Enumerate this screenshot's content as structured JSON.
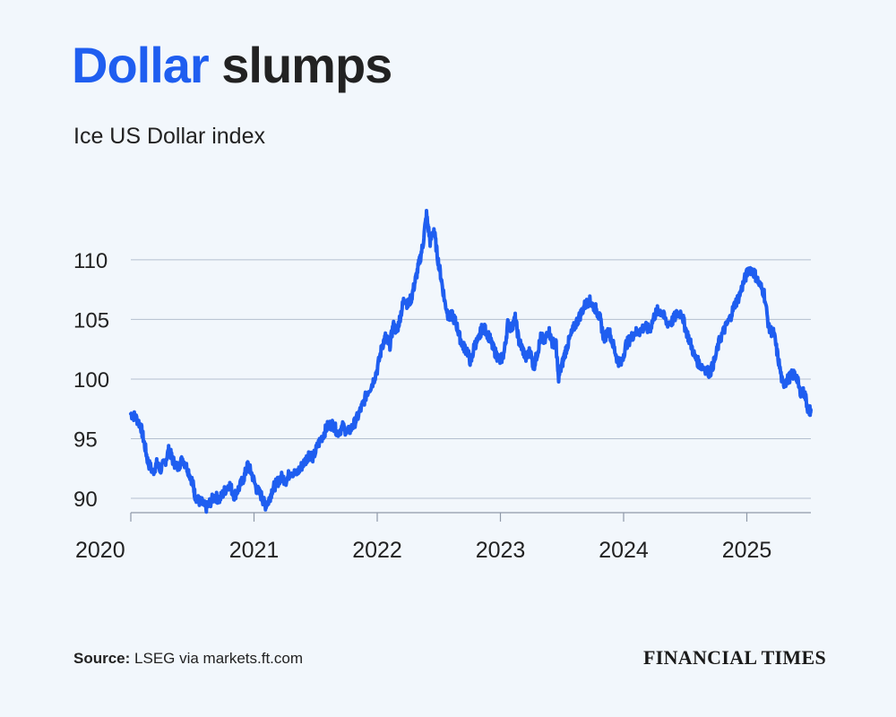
{
  "header": {
    "title_accent": "Dollar",
    "title_rest": " slumps",
    "subtitle": "Ice US Dollar index"
  },
  "footer": {
    "source_label": "Source:",
    "source_text": " LSEG via markets.ft.com",
    "logo": "FINANCIAL TIMES"
  },
  "colors": {
    "line": "#1f5ef0",
    "accent": "#1f5ef0",
    "grid": "#b4bfcf",
    "background": "#f2f7fc"
  },
  "chart_data": {
    "type": "line",
    "title": "Dollar slumps",
    "subtitle": "Ice US Dollar index",
    "xlabel": "",
    "ylabel": "",
    "xlim": [
      2020.0,
      2025.52
    ],
    "ylim": [
      88.8,
      114.5
    ],
    "grid": true,
    "y_ticks": [
      90,
      95,
      100,
      105,
      110
    ],
    "x_ticks": [
      2020,
      2021,
      2022,
      2023,
      2024,
      2025
    ],
    "x_tick_labels": [
      "2020",
      "2021",
      "2022",
      "2023",
      "2024",
      "2025"
    ],
    "series": [
      {
        "name": "",
        "points": [
          [
            2020.0,
            97.1
          ],
          [
            2020.04,
            96.8
          ],
          [
            2020.08,
            96.1
          ],
          [
            2020.11,
            94.6
          ],
          [
            2020.14,
            93.0
          ],
          [
            2020.18,
            92.2
          ],
          [
            2020.21,
            92.9
          ],
          [
            2020.24,
            92.4
          ],
          [
            2020.28,
            93.1
          ],
          [
            2020.31,
            94.1
          ],
          [
            2020.34,
            93.2
          ],
          [
            2020.38,
            92.6
          ],
          [
            2020.42,
            93.3
          ],
          [
            2020.46,
            92.5
          ],
          [
            2020.5,
            91.4
          ],
          [
            2020.52,
            90.3
          ],
          [
            2020.55,
            89.8
          ],
          [
            2020.58,
            89.6
          ],
          [
            2020.61,
            89.2
          ],
          [
            2020.64,
            89.6
          ],
          [
            2020.68,
            90.2
          ],
          [
            2020.72,
            89.9
          ],
          [
            2020.76,
            90.6
          ],
          [
            2020.8,
            91.2
          ],
          [
            2020.84,
            90.2
          ],
          [
            2020.88,
            90.9
          ],
          [
            2020.92,
            91.8
          ],
          [
            2020.95,
            92.8
          ],
          [
            2020.98,
            92.1
          ],
          [
            2021.02,
            90.8
          ],
          [
            2021.06,
            90.2
          ],
          [
            2021.09,
            89.4
          ],
          [
            2021.12,
            89.8
          ],
          [
            2021.15,
            90.8
          ],
          [
            2021.18,
            91.2
          ],
          [
            2021.22,
            91.8
          ],
          [
            2021.26,
            91.5
          ],
          [
            2021.3,
            92.3
          ],
          [
            2021.34,
            92.0
          ],
          [
            2021.38,
            92.6
          ],
          [
            2021.42,
            93.2
          ],
          [
            2021.45,
            93.8
          ],
          [
            2021.48,
            93.4
          ],
          [
            2021.52,
            94.5
          ],
          [
            2021.56,
            95.3
          ],
          [
            2021.6,
            96.1
          ],
          [
            2021.64,
            96.2
          ],
          [
            2021.68,
            95.5
          ],
          [
            2021.72,
            96.0
          ],
          [
            2021.76,
            95.5
          ],
          [
            2021.8,
            96.0
          ],
          [
            2021.84,
            96.8
          ],
          [
            2021.88,
            97.8
          ],
          [
            2021.92,
            98.9
          ],
          [
            2021.96,
            99.6
          ],
          [
            2022.0,
            100.8
          ],
          [
            2022.04,
            102.8
          ],
          [
            2022.07,
            103.6
          ],
          [
            2022.1,
            102.7
          ],
          [
            2022.13,
            104.5
          ],
          [
            2022.16,
            104.0
          ],
          [
            2022.19,
            105.4
          ],
          [
            2022.22,
            106.8
          ],
          [
            2022.25,
            106.2
          ],
          [
            2022.28,
            106.9
          ],
          [
            2022.31,
            108.3
          ],
          [
            2022.34,
            109.7
          ],
          [
            2022.37,
            111.2
          ],
          [
            2022.4,
            113.8
          ],
          [
            2022.43,
            111.5
          ],
          [
            2022.46,
            112.6
          ],
          [
            2022.49,
            110.2
          ],
          [
            2022.52,
            108.4
          ],
          [
            2022.55,
            106.4
          ],
          [
            2022.58,
            105.2
          ],
          [
            2022.61,
            105.3
          ],
          [
            2022.64,
            104.7
          ],
          [
            2022.67,
            103.5
          ],
          [
            2022.7,
            102.7
          ],
          [
            2022.73,
            102.4
          ],
          [
            2022.76,
            101.3
          ],
          [
            2022.79,
            102.9
          ],
          [
            2022.82,
            103.2
          ],
          [
            2022.85,
            104.3
          ],
          [
            2022.88,
            104.1
          ],
          [
            2022.91,
            103.5
          ],
          [
            2022.94,
            102.6
          ],
          [
            2022.97,
            102.0
          ],
          [
            2023.0,
            101.5
          ]
        ],
        "note_unused": ""
      }
    ]
  }
}
